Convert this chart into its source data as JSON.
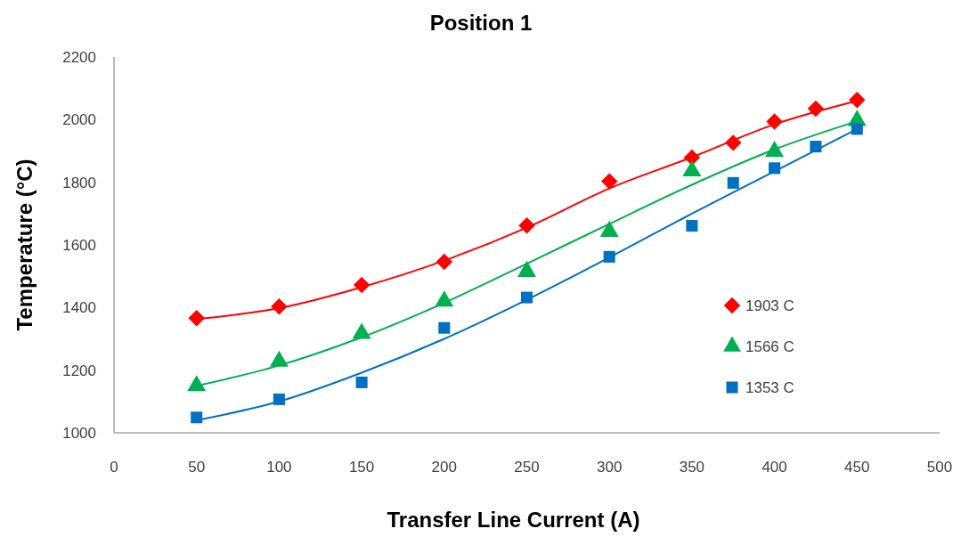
{
  "chart_data": {
    "type": "scatter",
    "title": "Position 1",
    "xlabel": "Transfer Line Current (A)",
    "ylabel": "Temperature (°C)",
    "xlim": [
      0,
      500
    ],
    "xticks": [
      0,
      50,
      100,
      150,
      200,
      250,
      300,
      350,
      400,
      450,
      500
    ],
    "ylim": [
      1000,
      2200
    ],
    "yticks": [
      1000,
      1200,
      1400,
      1600,
      1800,
      2000,
      2200
    ],
    "grid": false,
    "legend": "right",
    "series": [
      {
        "name": "1903 C",
        "color": "#ff0000",
        "marker": "diamond",
        "x": [
          50,
          100,
          150,
          200,
          250,
          300,
          350,
          375,
          400,
          425,
          450
        ],
        "values": [
          1366,
          1403,
          1472,
          1546,
          1662,
          1803,
          1879,
          1926,
          1994,
          2035,
          2063
        ]
      },
      {
        "name": "1566 C",
        "color": "#00b050",
        "marker": "triangle",
        "x": [
          50,
          100,
          150,
          200,
          250,
          300,
          350,
          400,
          450
        ],
        "values": [
          1150,
          1228,
          1317,
          1420,
          1515,
          1643,
          1836,
          1898,
          1997
        ]
      },
      {
        "name": "1353 C",
        "color": "#0070c0",
        "marker": "square",
        "x": [
          50,
          100,
          150,
          200,
          250,
          300,
          350,
          375,
          400,
          425,
          450
        ],
        "values": [
          1049,
          1107,
          1161,
          1335,
          1432,
          1562,
          1661,
          1798,
          1845,
          1914,
          1970
        ]
      },
      {
        "type": "line",
        "color": "#ff0000",
        "marker": "none",
        "x": [
          50,
          100,
          150,
          200,
          250,
          300,
          350,
          400,
          450
        ],
        "values": [
          1363,
          1398,
          1465,
          1550,
          1655,
          1780,
          1880,
          1985,
          2060
        ]
      },
      {
        "type": "line",
        "color": "#00b050",
        "marker": "none",
        "x": [
          50,
          100,
          150,
          200,
          250,
          300,
          350,
          400,
          450
        ],
        "values": [
          1150,
          1215,
          1305,
          1415,
          1540,
          1667,
          1792,
          1905,
          1995
        ]
      },
      {
        "type": "line",
        "color": "#0070c0",
        "marker": "none",
        "x": [
          50,
          100,
          150,
          200,
          250,
          300,
          350,
          400,
          450
        ],
        "values": [
          1040,
          1100,
          1192,
          1300,
          1425,
          1560,
          1700,
          1835,
          1970
        ]
      }
    ]
  }
}
